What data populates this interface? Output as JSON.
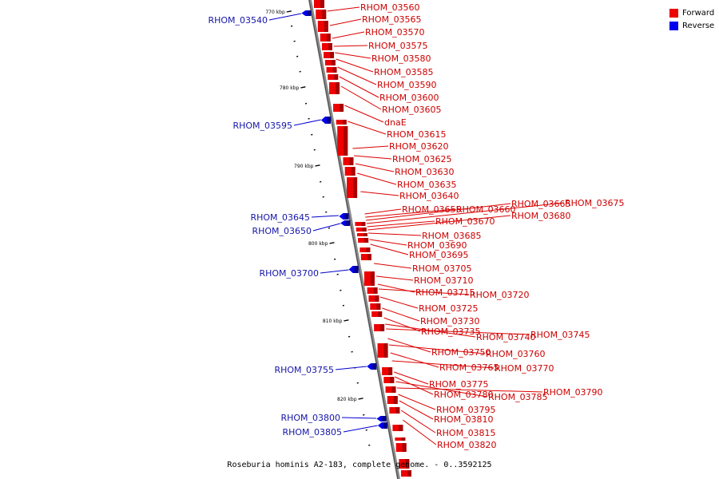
{
  "caption": "Roseburia hominis A2-183, complete genome. - 0..3592125",
  "legend": {
    "forward_label": "Forward",
    "reverse_label": "Reverse",
    "forward_color": "#ee0000",
    "reverse_color": "#0000ee"
  },
  "scale_labels": [
    "770 kbp",
    "780 kbp",
    "790 kbp",
    "800 kbp",
    "810 kbp",
    "820 kbp"
  ],
  "forward_genes": [
    "RHOM_03560",
    "RHOM_03565",
    "RHOM_03570",
    "RHOM_03575",
    "RHOM_03580",
    "RHOM_03585",
    "RHOM_03590",
    "RHOM_03600",
    "RHOM_03605",
    "dnaE",
    "RHOM_03615",
    "RHOM_03620",
    "RHOM_03625",
    "RHOM_03630",
    "RHOM_03635",
    "RHOM_03640",
    "RHOM_03655",
    "RHOM_03660",
    "RHOM_03665",
    "RHOM_03675",
    "RHOM_03670",
    "RHOM_03680",
    "RHOM_03685",
    "RHOM_03690",
    "RHOM_03695",
    "RHOM_03705",
    "RHOM_03710",
    "RHOM_03715",
    "RHOM_03720",
    "RHOM_03725",
    "RHOM_03730",
    "RHOM_03735",
    "RHOM_03740",
    "RHOM_03745",
    "RHOM_03750",
    "RHOM_03760",
    "RHOM_03765",
    "RHOM_03770",
    "RHOM_03775",
    "RHOM_03780",
    "RHOM_03785",
    "RHOM_03790",
    "RHOM_03795",
    "RHOM_03810",
    "RHOM_03815",
    "RHOM_03820"
  ],
  "reverse_genes": [
    "RHOM_03540",
    "RHOM_03595",
    "RHOM_03645",
    "RHOM_03650",
    "RHOM_03700",
    "RHOM_03755",
    "RHOM_03800",
    "RHOM_03805"
  ]
}
